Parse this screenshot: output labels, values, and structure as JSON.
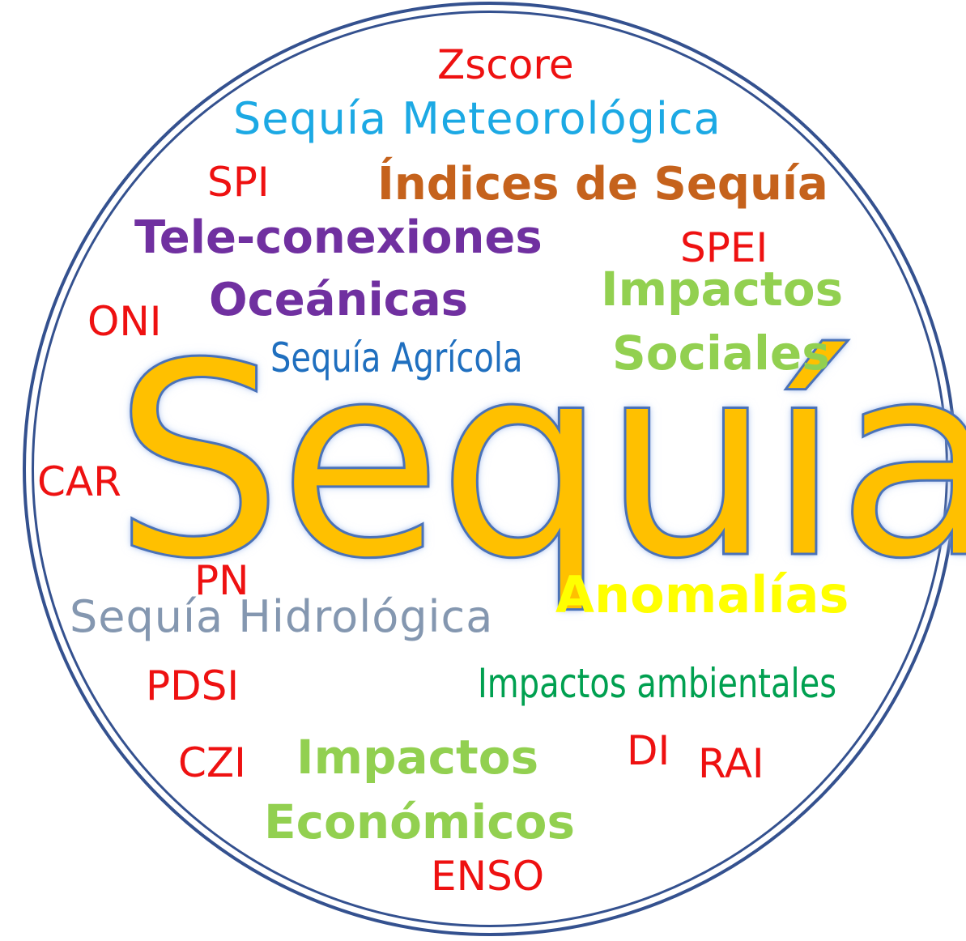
{
  "wordcloud": {
    "center": "Sequía",
    "words": {
      "zscore": "Zscore",
      "sequia_meteorologica": "Sequía Meteorológica",
      "spi": "SPI",
      "indices_de_sequia": "Índices de Sequía",
      "teleconexiones": "Tele-conexiones",
      "spei": "SPEI",
      "impactos_sociales_1": "Impactos",
      "oceanicas": "Oceánicas",
      "oni": "ONI",
      "sequia_agricola": "Sequía Agrícola",
      "impactos_sociales_2": "Sociales",
      "car": "CAR",
      "pn": "PN",
      "anomalias": "Anomalías",
      "sequia_hidrologica": "Sequía Hidrológica",
      "pdsi": "PDSI",
      "impactos_ambientales": "Impactos ambientales",
      "di": "DI",
      "impactos_economicos_1": "Impactos",
      "czi": "CZI",
      "rai": "RAI",
      "impactos_economicos_2": "Económicos",
      "enso": "ENSO"
    },
    "colors": {
      "index_terms": "#ee1111",
      "meteorologica": "#1ca9e4",
      "indices": "#c5621c",
      "teleconexiones": "#7030a0",
      "impactos": "#92d050",
      "agricola": "#1f6fbf",
      "center_fill": "#ffc000",
      "center_outline": "#4a72b8",
      "anomalias": "#ffff00",
      "hidrologica": "#8497b0",
      "ambientales": "#00a050",
      "circle": "#34518f"
    }
  }
}
